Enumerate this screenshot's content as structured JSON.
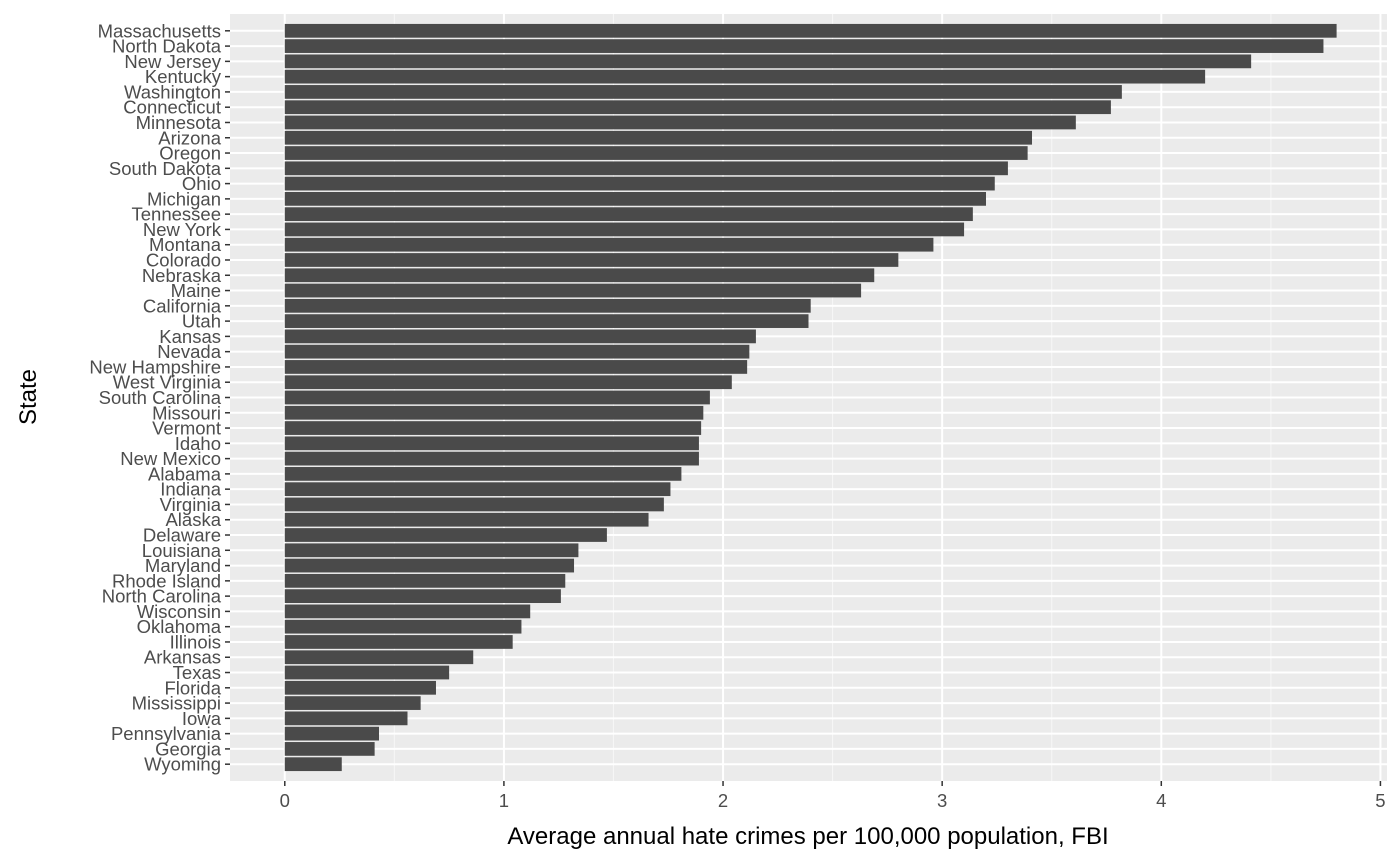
{
  "chart_data": {
    "type": "bar",
    "orientation": "horizontal",
    "title": "",
    "xlabel": "Average annual hate crimes per 100,000 population, FBI",
    "ylabel": "State",
    "xlim": [
      -0.25,
      5.03
    ],
    "x_ticks": [
      "0",
      "1",
      "2",
      "3",
      "4",
      "5"
    ],
    "x_tick_values": [
      0,
      1,
      2,
      3,
      4,
      5
    ],
    "grid": true,
    "panel_color": "#ebebeb",
    "bar_color": "#4a4a4a",
    "categories": [
      "Massachusetts",
      "North Dakota",
      "New Jersey",
      "Kentucky",
      "Washington",
      "Connecticut",
      "Minnesota",
      "Arizona",
      "Oregon",
      "South Dakota",
      "Ohio",
      "Michigan",
      "Tennessee",
      "New York",
      "Montana",
      "Colorado",
      "Nebraska",
      "Maine",
      "California",
      "Utah",
      "Kansas",
      "Nevada",
      "New Hampshire",
      "West Virginia",
      "South Carolina",
      "Missouri",
      "Vermont",
      "Idaho",
      "New Mexico",
      "Alabama",
      "Indiana",
      "Virginia",
      "Alaska",
      "Delaware",
      "Louisiana",
      "Maryland",
      "Rhode Island",
      "North Carolina",
      "Wisconsin",
      "Oklahoma",
      "Illinois",
      "Arkansas",
      "Texas",
      "Florida",
      "Mississippi",
      "Iowa",
      "Pennsylvania",
      "Georgia",
      "Wyoming"
    ],
    "values": [
      4.8,
      4.74,
      4.41,
      4.2,
      3.82,
      3.77,
      3.61,
      3.41,
      3.39,
      3.3,
      3.24,
      3.2,
      3.14,
      3.1,
      2.96,
      2.8,
      2.69,
      2.63,
      2.4,
      2.39,
      2.15,
      2.12,
      2.11,
      2.04,
      1.94,
      1.91,
      1.9,
      1.89,
      1.89,
      1.81,
      1.76,
      1.73,
      1.66,
      1.47,
      1.34,
      1.32,
      1.28,
      1.26,
      1.12,
      1.08,
      1.04,
      0.86,
      0.75,
      0.69,
      0.62,
      0.56,
      0.43,
      0.41,
      0.26
    ]
  }
}
